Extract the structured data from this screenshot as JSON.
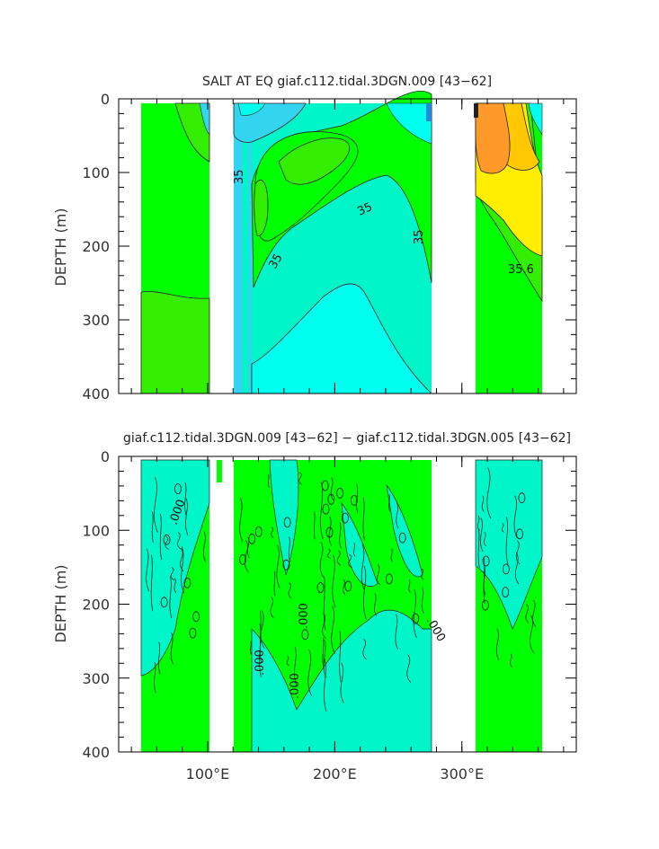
{
  "figure": {
    "kind": "ocean model depth-longitude section"
  },
  "chart_data": [
    {
      "type": "heatmap",
      "title": "SALT AT EQ giaf.c112.tidal.3DGN.009 [43−62]",
      "xlabel": "",
      "ylabel": "DEPTH (m)",
      "xlim": [
        30,
        390
      ],
      "ylim": [
        400,
        0
      ],
      "yticks": [
        0,
        100,
        200,
        300,
        400
      ],
      "xticks": [
        100,
        200,
        300
      ],
      "xtick_labels": [
        "",
        "",
        ""
      ],
      "contour_labels": [
        "35",
        "35",
        "35",
        "35",
        "35.6"
      ],
      "land_gaps_lon": [
        [
          100,
          118
        ],
        [
          122,
          130
        ],
        [
          278,
          315
        ]
      ],
      "data_extent_lon": [
        45,
        368
      ],
      "colors": {
        "fresh": "#33d4f0",
        "cyan": "#00ffee",
        "aqua": "#00f5c8",
        "green": "#00ff00",
        "darkgreen": "#33ee00",
        "yellow": "#ffee00",
        "gold": "#ffc800",
        "orange": "#ff9a2a",
        "land": "#ffffff"
      }
    },
    {
      "type": "heatmap",
      "title": "giaf.c112.tidal.3DGN.009 [43−62] − giaf.c112.tidal.3DGN.005 [43−62]",
      "xlabel": "",
      "ylabel": "DEPTH (m)",
      "xlim": [
        30,
        390
      ],
      "ylim": [
        400,
        0
      ],
      "yticks": [
        0,
        100,
        200,
        300,
        400
      ],
      "xticks": [
        100,
        200,
        300
      ],
      "xtick_labels": [
        "100°E",
        "200°E",
        "300°E"
      ],
      "contour_labels": [
        ".000",
        ".000",
        ".000",
        ".000",
        ".000"
      ],
      "land_gaps_lon": [
        [
          100,
          118
        ],
        [
          122,
          130
        ],
        [
          278,
          315
        ]
      ],
      "data_extent_lon": [
        45,
        368
      ]
    }
  ]
}
